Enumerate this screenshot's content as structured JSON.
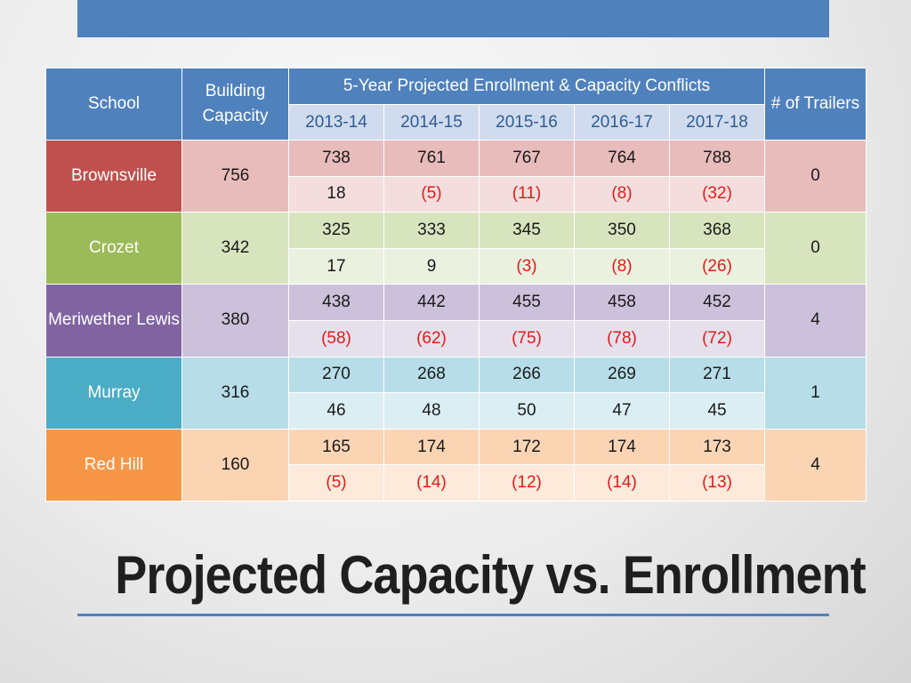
{
  "slide_title": "Projected Capacity vs. Enrollment",
  "table": {
    "headers": {
      "school": "School",
      "capacity": "Building Capacity",
      "projection_group": "5-Year Projected Enrollment & Capacity Conflicts",
      "trailers": "# of Trailers",
      "years": [
        "2013-14",
        "2014-15",
        "2015-16",
        "2016-17",
        "2017-18"
      ]
    },
    "rows": [
      {
        "school": "Brownsville",
        "capacity": "756",
        "enrollment": [
          "738",
          "761",
          "767",
          "764",
          "788"
        ],
        "conflicts": [
          "18",
          "(5)",
          "(11)",
          "(8)",
          "(32)"
        ],
        "trailers": "0"
      },
      {
        "school": "Crozet",
        "capacity": "342",
        "enrollment": [
          "325",
          "333",
          "345",
          "350",
          "368"
        ],
        "conflicts": [
          "17",
          "9",
          "(3)",
          "(8)",
          "(26)"
        ],
        "trailers": "0"
      },
      {
        "school": "Meriwether Lewis",
        "capacity": "380",
        "enrollment": [
          "438",
          "442",
          "455",
          "458",
          "452"
        ],
        "conflicts": [
          "(58)",
          "(62)",
          "(75)",
          "(78)",
          "(72)"
        ],
        "trailers": "4"
      },
      {
        "school": "Murray",
        "capacity": "316",
        "enrollment": [
          "270",
          "268",
          "266",
          "269",
          "271"
        ],
        "conflicts": [
          "46",
          "48",
          "50",
          "47",
          "45"
        ],
        "trailers": "1"
      },
      {
        "school": "Red Hill",
        "capacity": "160",
        "enrollment": [
          "165",
          "174",
          "172",
          "174",
          "173"
        ],
        "conflicts": [
          "(5)",
          "(14)",
          "(12)",
          "(14)",
          "(13)"
        ],
        "trailers": "4"
      }
    ],
    "colors": {
      "header": "#4f81bd",
      "negative_text": "#e21b1b",
      "brownsville": "#c0504d",
      "crozet": "#9bbb59",
      "meriwether_lewis": "#8064a2",
      "murray": "#4bacc6",
      "red_hill": "#f79646"
    }
  }
}
